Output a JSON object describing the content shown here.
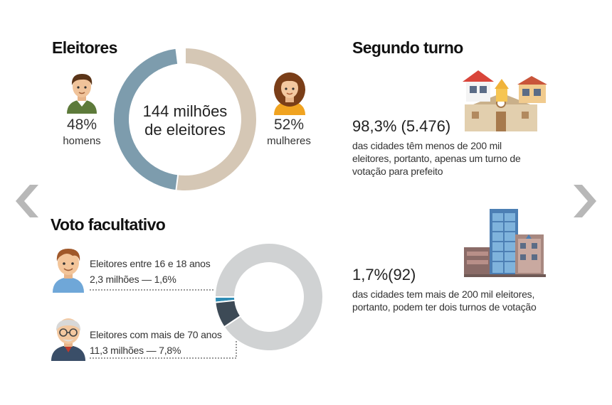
{
  "colors": {
    "men": "#7d9cad",
    "women": "#d5c7b5",
    "voto_rest": "#d0d2d3",
    "young": "#2f8db5",
    "elderly": "#3d4a56",
    "arrow": "#b8b8b8"
  },
  "eleitores": {
    "title": "Eleitores",
    "center_line1": "144 milhões",
    "center_line2": "de eleitores",
    "men_pct": "48%",
    "men_label": "homens",
    "women_pct": "52%",
    "women_label": "mulheres"
  },
  "segundo_turno": {
    "title": "Segundo turno",
    "stat1_value": "98,3% (5.476)",
    "stat1_line1": "das cidades têm menos de 200 mil",
    "stat1_line2": "eleitores, portanto, apenas um turno de",
    "stat1_line3": "votação para prefeito",
    "stat2_value": "1,7%(92)",
    "stat2_line1": "das cidades tem mais de 200 mil eleitores,",
    "stat2_line2": "portanto, podem ter dois turnos de votação"
  },
  "voto_facultativo": {
    "title": "Voto facultativo",
    "young_label": "Eleitores entre 16 e 18 anos",
    "young_value": "2,3 milhões — 1,6%",
    "elderly_label": "Eleitores com mais de 70 anos",
    "elderly_value": "11,3 milhões — 7,8%"
  },
  "icons": {
    "man": "man-avatar-icon",
    "woman": "woman-avatar-icon",
    "boy": "boy-avatar-icon",
    "elderly": "elderly-man-avatar-icon",
    "small_town": "small-town-houses-icon",
    "city": "city-buildings-icon",
    "prev": "chevron-left-icon",
    "next": "chevron-right-icon"
  },
  "chart_data": [
    {
      "type": "pie",
      "title": "Eleitores",
      "categories": [
        "homens",
        "mulheres"
      ],
      "values": [
        48,
        52
      ],
      "total_text": "144 milhões de eleitores"
    },
    {
      "type": "pie",
      "title": "Voto facultativo",
      "categories": [
        "Eleitores entre 16 e 18 anos",
        "Eleitores com mais de 70 anos"
      ],
      "values": [
        1.6,
        7.8
      ],
      "absolute_millions": [
        2.3,
        11.3
      ]
    }
  ]
}
